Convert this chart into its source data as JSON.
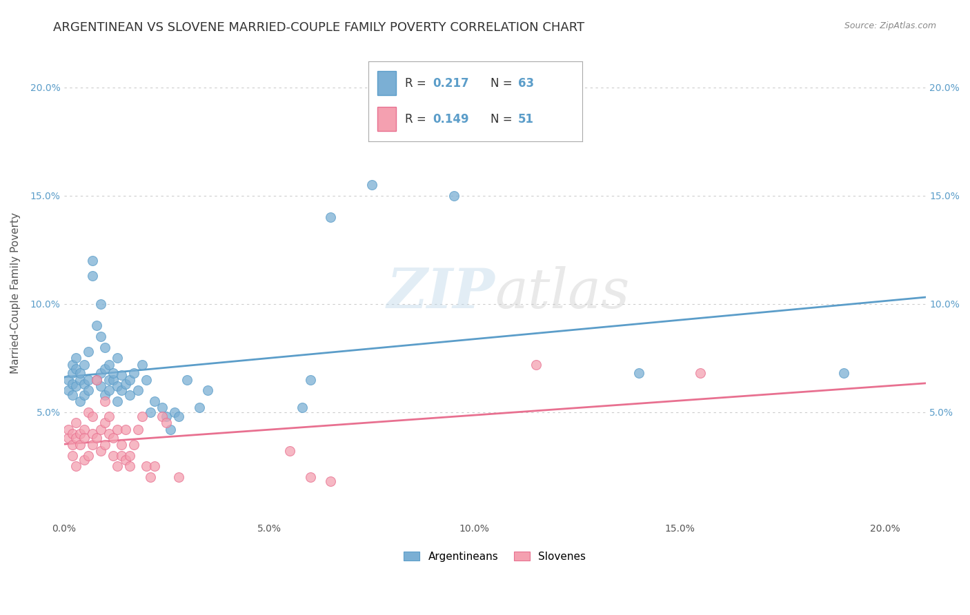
{
  "title": "ARGENTINEAN VS SLOVENE MARRIED-COUPLE FAMILY POVERTY CORRELATION CHART",
  "source": "Source: ZipAtlas.com",
  "ylabel": "Married-Couple Family Poverty",
  "xlim": [
    0.0,
    0.2
  ],
  "ylim": [
    0.0,
    0.2
  ],
  "argentinean_color": "#7bafd4",
  "slovene_color": "#f4a0b0",
  "argentinean_trend_color": "#5b9dc9",
  "slovene_trend_color": "#e87090",
  "watermark_text": "ZIPatlas",
  "title_fontsize": 13,
  "axis_label_fontsize": 11,
  "tick_fontsize": 10,
  "argentinean_R": 0.217,
  "argentinean_N": 63,
  "slovene_R": 0.149,
  "slovene_N": 51,
  "argentinean_points": [
    [
      0.001,
      0.065
    ],
    [
      0.001,
      0.06
    ],
    [
      0.002,
      0.068
    ],
    [
      0.002,
      0.072
    ],
    [
      0.002,
      0.063
    ],
    [
      0.002,
      0.058
    ],
    [
      0.003,
      0.075
    ],
    [
      0.003,
      0.062
    ],
    [
      0.003,
      0.07
    ],
    [
      0.004,
      0.065
    ],
    [
      0.004,
      0.055
    ],
    [
      0.004,
      0.068
    ],
    [
      0.005,
      0.063
    ],
    [
      0.005,
      0.072
    ],
    [
      0.005,
      0.058
    ],
    [
      0.006,
      0.078
    ],
    [
      0.006,
      0.065
    ],
    [
      0.006,
      0.06
    ],
    [
      0.007,
      0.113
    ],
    [
      0.007,
      0.12
    ],
    [
      0.008,
      0.09
    ],
    [
      0.008,
      0.065
    ],
    [
      0.009,
      0.068
    ],
    [
      0.009,
      0.1
    ],
    [
      0.009,
      0.085
    ],
    [
      0.009,
      0.062
    ],
    [
      0.01,
      0.08
    ],
    [
      0.01,
      0.07
    ],
    [
      0.01,
      0.058
    ],
    [
      0.011,
      0.065
    ],
    [
      0.011,
      0.072
    ],
    [
      0.011,
      0.06
    ],
    [
      0.012,
      0.065
    ],
    [
      0.012,
      0.068
    ],
    [
      0.013,
      0.062
    ],
    [
      0.013,
      0.075
    ],
    [
      0.013,
      0.055
    ],
    [
      0.014,
      0.067
    ],
    [
      0.014,
      0.06
    ],
    [
      0.015,
      0.063
    ],
    [
      0.016,
      0.058
    ],
    [
      0.016,
      0.065
    ],
    [
      0.017,
      0.068
    ],
    [
      0.018,
      0.06
    ],
    [
      0.019,
      0.072
    ],
    [
      0.02,
      0.065
    ],
    [
      0.021,
      0.05
    ],
    [
      0.022,
      0.055
    ],
    [
      0.024,
      0.052
    ],
    [
      0.025,
      0.048
    ],
    [
      0.026,
      0.042
    ],
    [
      0.027,
      0.05
    ],
    [
      0.028,
      0.048
    ],
    [
      0.03,
      0.065
    ],
    [
      0.033,
      0.052
    ],
    [
      0.035,
      0.06
    ],
    [
      0.058,
      0.052
    ],
    [
      0.06,
      0.065
    ],
    [
      0.065,
      0.14
    ],
    [
      0.075,
      0.155
    ],
    [
      0.095,
      0.15
    ],
    [
      0.14,
      0.068
    ],
    [
      0.19,
      0.068
    ]
  ],
  "slovene_points": [
    [
      0.001,
      0.038
    ],
    [
      0.001,
      0.042
    ],
    [
      0.002,
      0.035
    ],
    [
      0.002,
      0.04
    ],
    [
      0.002,
      0.03
    ],
    [
      0.003,
      0.038
    ],
    [
      0.003,
      0.045
    ],
    [
      0.003,
      0.025
    ],
    [
      0.004,
      0.04
    ],
    [
      0.004,
      0.035
    ],
    [
      0.005,
      0.042
    ],
    [
      0.005,
      0.028
    ],
    [
      0.005,
      0.038
    ],
    [
      0.006,
      0.05
    ],
    [
      0.006,
      0.03
    ],
    [
      0.007,
      0.04
    ],
    [
      0.007,
      0.048
    ],
    [
      0.007,
      0.035
    ],
    [
      0.008,
      0.065
    ],
    [
      0.008,
      0.038
    ],
    [
      0.009,
      0.042
    ],
    [
      0.009,
      0.032
    ],
    [
      0.01,
      0.055
    ],
    [
      0.01,
      0.045
    ],
    [
      0.01,
      0.035
    ],
    [
      0.011,
      0.04
    ],
    [
      0.011,
      0.048
    ],
    [
      0.012,
      0.03
    ],
    [
      0.012,
      0.038
    ],
    [
      0.013,
      0.042
    ],
    [
      0.013,
      0.025
    ],
    [
      0.014,
      0.03
    ],
    [
      0.014,
      0.035
    ],
    [
      0.015,
      0.028
    ],
    [
      0.015,
      0.042
    ],
    [
      0.016,
      0.025
    ],
    [
      0.016,
      0.03
    ],
    [
      0.017,
      0.035
    ],
    [
      0.018,
      0.042
    ],
    [
      0.019,
      0.048
    ],
    [
      0.02,
      0.025
    ],
    [
      0.021,
      0.02
    ],
    [
      0.022,
      0.025
    ],
    [
      0.024,
      0.048
    ],
    [
      0.025,
      0.045
    ],
    [
      0.028,
      0.02
    ],
    [
      0.055,
      0.032
    ],
    [
      0.06,
      0.02
    ],
    [
      0.065,
      0.018
    ],
    [
      0.115,
      0.072
    ],
    [
      0.155,
      0.068
    ]
  ]
}
